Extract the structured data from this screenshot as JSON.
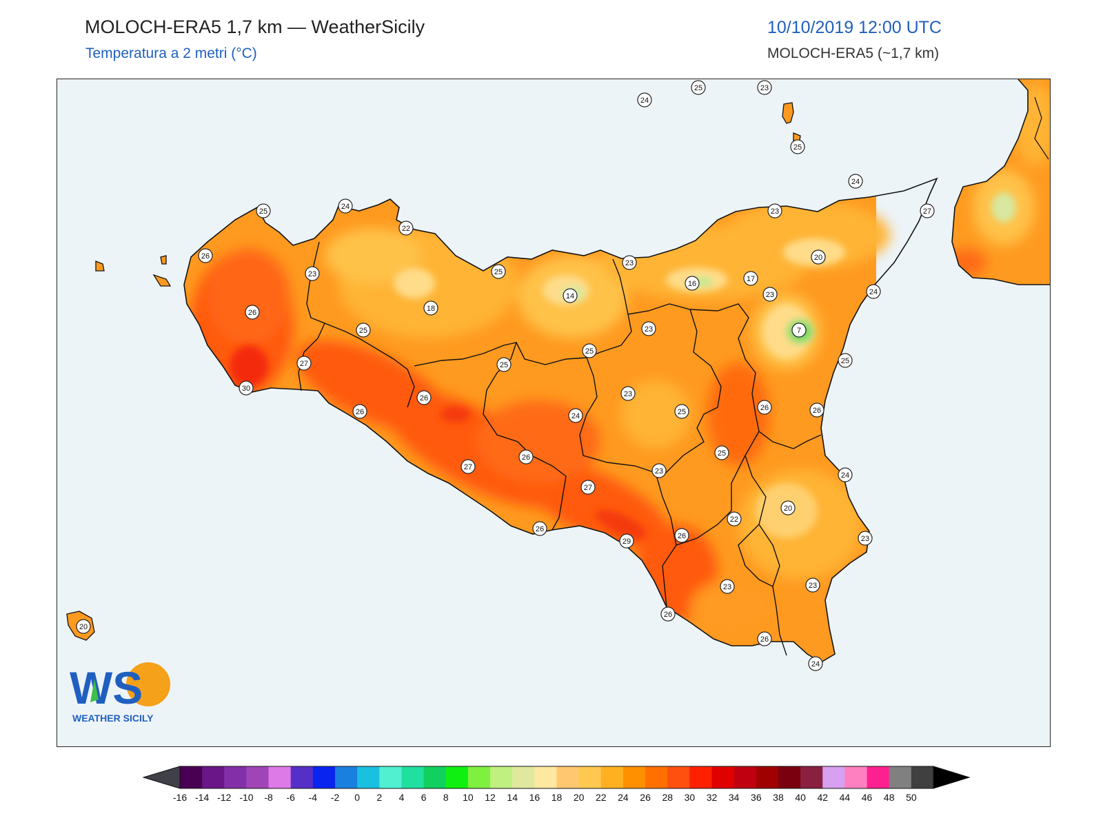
{
  "header": {
    "title": "MOLOCH-ERA5 1,7 km — WeatherSicily",
    "subtitle": "Temperatura a 2 metri (°C)",
    "datetime": "10/10/2019 12:00 UTC",
    "model": "MOLOCH-ERA5 (~1,7 km)"
  },
  "logo": {
    "letters": "WS",
    "text": "WEATHER SICILY"
  },
  "colorbar": {
    "ticks": [
      "-16",
      "-14",
      "-12",
      "-10",
      "-8",
      "-6",
      "-4",
      "-2",
      "0",
      "2",
      "4",
      "6",
      "8",
      "10",
      "12",
      "14",
      "16",
      "18",
      "20",
      "22",
      "24",
      "26",
      "28",
      "30",
      "32",
      "34",
      "36",
      "38",
      "40",
      "42",
      "44",
      "46",
      "48",
      "50"
    ],
    "colors": [
      "#4a0052",
      "#6b1688",
      "#8330a8",
      "#a045b8",
      "#dd7ae8",
      "#5530c8",
      "#0a24f0",
      "#1a80e0",
      "#1ac0e0",
      "#50f0d0",
      "#20e0a0",
      "#10d060",
      "#10f010",
      "#80f040",
      "#c0f080",
      "#e0e8a0",
      "#ffe8a0",
      "#ffc870",
      "#ffc850",
      "#ffb020",
      "#ff9000",
      "#ff7000",
      "#ff5010",
      "#ff2000",
      "#e00000",
      "#c00010",
      "#a00000",
      "#7a0010",
      "#8a2040",
      "#d8a0f0",
      "#ff80c0",
      "#ff2090",
      "#808080",
      "#404040"
    ],
    "under_color": "#404048",
    "over_color": "#000000"
  },
  "temperature_labels": [
    {
      "v": "25"
    },
    {
      "v": "23"
    },
    {
      "v": "24"
    },
    {
      "v": "25"
    },
    {
      "v": "24"
    },
    {
      "v": "25"
    },
    {
      "v": "24"
    },
    {
      "v": "23"
    },
    {
      "v": "27"
    },
    {
      "v": "22"
    },
    {
      "v": "25"
    },
    {
      "v": "26"
    },
    {
      "v": "22"
    },
    {
      "v": "23"
    },
    {
      "v": "23"
    },
    {
      "v": "20"
    },
    {
      "v": "14"
    },
    {
      "v": "16"
    },
    {
      "v": "17"
    },
    {
      "v": "24"
    },
    {
      "v": "26"
    },
    {
      "v": "18"
    },
    {
      "v": "25"
    },
    {
      "v": "7"
    },
    {
      "v": "23"
    },
    {
      "v": "23"
    },
    {
      "v": "25"
    },
    {
      "v": "27"
    },
    {
      "v": "25"
    },
    {
      "v": "25"
    },
    {
      "v": "30"
    },
    {
      "v": "26"
    },
    {
      "v": "26"
    },
    {
      "v": "23"
    },
    {
      "v": "24"
    },
    {
      "v": "26"
    },
    {
      "v": "25"
    },
    {
      "v": "26"
    },
    {
      "v": "25"
    },
    {
      "v": "27"
    },
    {
      "v": "26"
    },
    {
      "v": "23"
    },
    {
      "v": "24"
    },
    {
      "v": "27"
    },
    {
      "v": "20"
    },
    {
      "v": "22"
    },
    {
      "v": "26"
    },
    {
      "v": "29"
    },
    {
      "v": "26"
    },
    {
      "v": "23"
    },
    {
      "v": "23"
    },
    {
      "v": "23"
    },
    {
      "v": "26"
    },
    {
      "v": "26"
    },
    {
      "v": "24"
    },
    {
      "v": "20"
    }
  ],
  "map_colors": {
    "sea": "#edf4f8",
    "sicily_base": "#ff9a20",
    "hot_zone": "#ff5a10",
    "very_hot": "#f42a10",
    "mild": "#ffc24a",
    "cool": "#ffdc8a",
    "green_spot": "#3ecf3e",
    "calabria": "#ff9a20"
  }
}
